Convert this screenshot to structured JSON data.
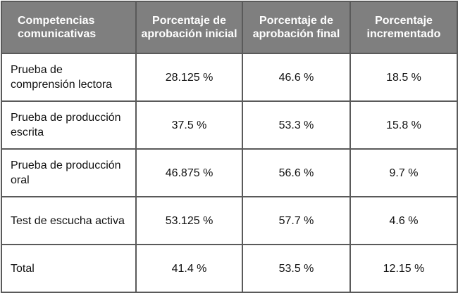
{
  "table": {
    "header": [
      "Competencias comunicativas",
      "Porcentaje de aprobación inicial",
      "Porcentaje de aprobación final",
      "Porcentaje incrementado"
    ],
    "rows": [
      [
        "Prueba de comprensión lectora",
        "28.125 %",
        "46.6 %",
        "18.5 %"
      ],
      [
        "Prueba de producción escrita",
        "37.5 %",
        "53.3 %",
        "15.8 %"
      ],
      [
        "Prueba de producción oral",
        "46.875 %",
        "56.6 %",
        "9.7 %"
      ],
      [
        "Test de escucha activa",
        "53.125 %",
        "57.7 %",
        "4.6 %"
      ],
      [
        "Total",
        "41.4 %",
        "53.5 %",
        "12.15 %"
      ]
    ]
  }
}
